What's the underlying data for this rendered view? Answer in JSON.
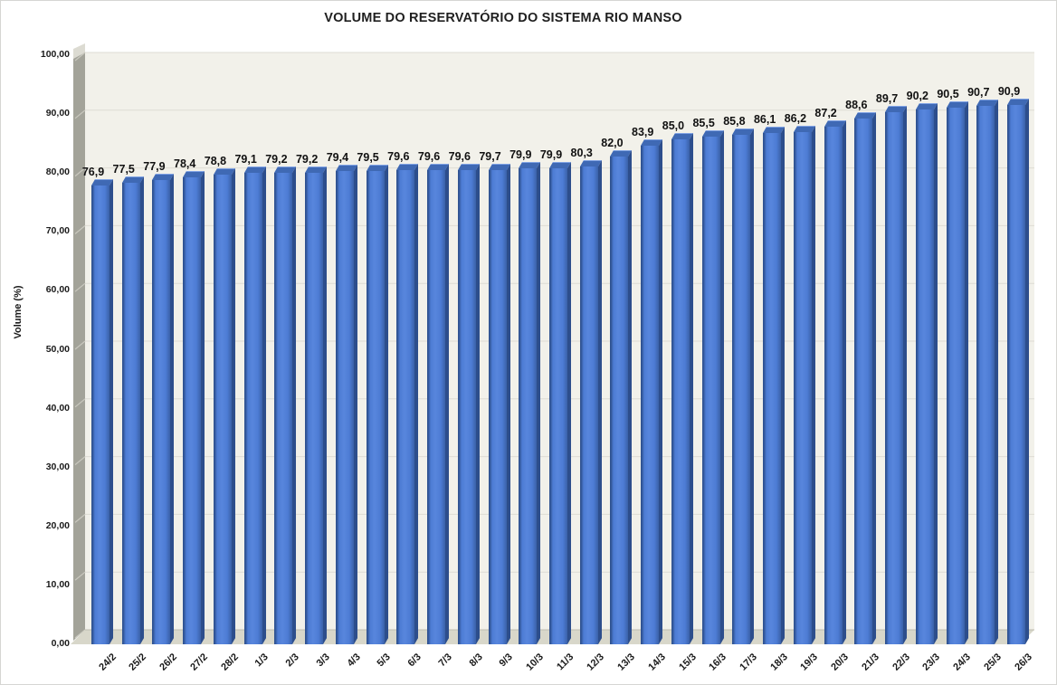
{
  "title": "VOLUME DO RESERVATÓRIO DO SISTEMA RIO MANSO",
  "chart_data": {
    "type": "bar",
    "style": "3d-column",
    "title": "VOLUME DO RESERVATÓRIO DO SISTEMA RIO MANSO",
    "xlabel": "",
    "ylabel": "Volume (%)",
    "ylim": [
      0,
      100
    ],
    "ytick_step": 10,
    "ytick_decimal_places": 2,
    "grid": true,
    "legend": "none",
    "categories": [
      "24/2",
      "25/2",
      "26/2",
      "27/2",
      "28/2",
      "1/3",
      "2/3",
      "3/3",
      "4/3",
      "5/3",
      "6/3",
      "7/3",
      "8/3",
      "9/3",
      "10/3",
      "11/3",
      "12/3",
      "13/3",
      "14/3",
      "15/3",
      "16/3",
      "17/3",
      "18/3",
      "19/3",
      "20/3",
      "21/3",
      "22/3",
      "23/3",
      "24/3",
      "25/3",
      "26/3"
    ],
    "values": [
      76.9,
      77.5,
      77.9,
      78.4,
      78.8,
      79.1,
      79.2,
      79.2,
      79.4,
      79.5,
      79.6,
      79.6,
      79.6,
      79.7,
      79.9,
      79.9,
      80.3,
      82.0,
      83.9,
      85.0,
      85.5,
      85.8,
      86.1,
      86.2,
      87.2,
      88.6,
      89.7,
      90.2,
      90.5,
      90.7,
      90.9
    ],
    "decimal_separator": ","
  },
  "colors": {
    "bar_main": "#4d7cd4",
    "bar_light": "#5886dd",
    "bar_edge": "#2f5291",
    "bar_edge2": "#3a61a8",
    "bar_side": "#2d4e8c",
    "bar_top": "#3f69b4",
    "bar_top_highlight": "#7fa2e4",
    "back_wall": "#f2f1ea",
    "side_wall": "#a3a399",
    "side_wall_top": "#dcdbd2",
    "floor": "#d8d7ca",
    "floor_edge": "#bdbcb0",
    "gridline": "#dddcd4",
    "wall_tick": "#c9c8be",
    "title_text": "#1f1f1f"
  }
}
